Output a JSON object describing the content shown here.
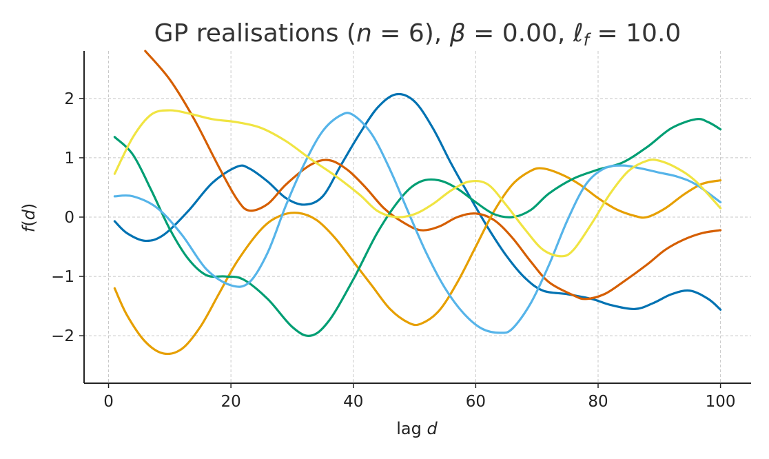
{
  "chart_data": {
    "type": "line",
    "title_parts": {
      "prefix": "GP realisations (",
      "n_sym": "n",
      "n_eq": " = 6), ",
      "beta_sym": "β",
      "beta_eq": " = 0.00, ",
      "l_sym": "ℓ",
      "l_sub": "f",
      "l_eq": " = 10.0"
    },
    "xlabel_parts": {
      "prefix": "lag ",
      "var": "d"
    },
    "ylabel_parts": {
      "func": "f",
      "open": "(",
      "var": "d",
      "close": ")"
    },
    "xlim": [
      -4,
      105
    ],
    "ylim": [
      -2.8,
      2.8
    ],
    "xticks": [
      0,
      20,
      40,
      60,
      80,
      100
    ],
    "yticks": [
      -2,
      -1,
      0,
      1,
      2
    ],
    "ytick_labels": [
      "−2",
      "−1",
      "0",
      "1",
      "2"
    ],
    "grid": true,
    "series": [
      {
        "color": "#0072B2",
        "points": [
          [
            1,
            -0.07
          ],
          [
            3,
            -0.27
          ],
          [
            6,
            -0.4
          ],
          [
            9,
            -0.3
          ],
          [
            13,
            0.1
          ],
          [
            17,
            0.58
          ],
          [
            21,
            0.85
          ],
          [
            23,
            0.82
          ],
          [
            26,
            0.6
          ],
          [
            29,
            0.32
          ],
          [
            32,
            0.21
          ],
          [
            35,
            0.35
          ],
          [
            38,
            0.88
          ],
          [
            41,
            1.4
          ],
          [
            44,
            1.85
          ],
          [
            47,
            2.07
          ],
          [
            50,
            1.95
          ],
          [
            53,
            1.5
          ],
          [
            56,
            0.9
          ],
          [
            59,
            0.35
          ],
          [
            62,
            -0.18
          ],
          [
            65,
            -0.65
          ],
          [
            68,
            -1.02
          ],
          [
            71,
            -1.24
          ],
          [
            75,
            -1.3
          ],
          [
            79,
            -1.38
          ],
          [
            82,
            -1.48
          ],
          [
            86,
            -1.55
          ],
          [
            89,
            -1.45
          ],
          [
            92,
            -1.3
          ],
          [
            95,
            -1.24
          ],
          [
            98,
            -1.38
          ],
          [
            100,
            -1.56
          ]
        ]
      },
      {
        "color": "#D55E00",
        "points": [
          [
            6,
            2.8
          ],
          [
            10,
            2.32
          ],
          [
            14,
            1.65
          ],
          [
            18,
            0.85
          ],
          [
            21,
            0.3
          ],
          [
            23,
            0.11
          ],
          [
            26,
            0.22
          ],
          [
            29,
            0.55
          ],
          [
            33,
            0.88
          ],
          [
            36,
            0.96
          ],
          [
            39,
            0.8
          ],
          [
            42,
            0.5
          ],
          [
            45,
            0.15
          ],
          [
            48,
            -0.08
          ],
          [
            51,
            -0.22
          ],
          [
            54,
            -0.16
          ],
          [
            57,
            0.0
          ],
          [
            60,
            0.06
          ],
          [
            63,
            -0.05
          ],
          [
            66,
            -0.35
          ],
          [
            69,
            -0.75
          ],
          [
            72,
            -1.1
          ],
          [
            76,
            -1.32
          ],
          [
            78,
            -1.38
          ],
          [
            81,
            -1.3
          ],
          [
            84,
            -1.1
          ],
          [
            88,
            -0.8
          ],
          [
            91,
            -0.55
          ],
          [
            94,
            -0.38
          ],
          [
            97,
            -0.27
          ],
          [
            100,
            -0.22
          ]
        ]
      },
      {
        "color": "#E69F00",
        "points": [
          [
            1,
            -1.2
          ],
          [
            3,
            -1.65
          ],
          [
            6,
            -2.1
          ],
          [
            9,
            -2.3
          ],
          [
            12,
            -2.22
          ],
          [
            15,
            -1.85
          ],
          [
            18,
            -1.3
          ],
          [
            21,
            -0.75
          ],
          [
            25,
            -0.2
          ],
          [
            28,
            0.02
          ],
          [
            31,
            0.07
          ],
          [
            34,
            -0.05
          ],
          [
            37,
            -0.35
          ],
          [
            40,
            -0.75
          ],
          [
            43,
            -1.15
          ],
          [
            46,
            -1.55
          ],
          [
            49,
            -1.78
          ],
          [
            51,
            -1.8
          ],
          [
            54,
            -1.58
          ],
          [
            57,
            -1.1
          ],
          [
            60,
            -0.5
          ],
          [
            63,
            0.1
          ],
          [
            66,
            0.55
          ],
          [
            69,
            0.78
          ],
          [
            71,
            0.82
          ],
          [
            74,
            0.72
          ],
          [
            77,
            0.55
          ],
          [
            80,
            0.32
          ],
          [
            83,
            0.13
          ],
          [
            86,
            0.02
          ],
          [
            88,
            0.0
          ],
          [
            91,
            0.15
          ],
          [
            94,
            0.38
          ],
          [
            97,
            0.56
          ],
          [
            100,
            0.62
          ]
        ]
      },
      {
        "color": "#009E73",
        "points": [
          [
            1,
            1.35
          ],
          [
            4,
            1.05
          ],
          [
            7,
            0.45
          ],
          [
            10,
            -0.2
          ],
          [
            13,
            -0.7
          ],
          [
            16,
            -0.98
          ],
          [
            19,
            -1.0
          ],
          [
            22,
            -1.05
          ],
          [
            26,
            -1.38
          ],
          [
            30,
            -1.85
          ],
          [
            33,
            -2.0
          ],
          [
            36,
            -1.75
          ],
          [
            40,
            -1.05
          ],
          [
            44,
            -0.25
          ],
          [
            48,
            0.35
          ],
          [
            51,
            0.6
          ],
          [
            54,
            0.62
          ],
          [
            57,
            0.48
          ],
          [
            60,
            0.25
          ],
          [
            63,
            0.05
          ],
          [
            66,
            0.0
          ],
          [
            69,
            0.12
          ],
          [
            72,
            0.4
          ],
          [
            76,
            0.65
          ],
          [
            80,
            0.8
          ],
          [
            84,
            0.92
          ],
          [
            88,
            1.18
          ],
          [
            92,
            1.5
          ],
          [
            96,
            1.65
          ],
          [
            98,
            1.6
          ],
          [
            100,
            1.48
          ]
        ]
      },
      {
        "color": "#56B4E9",
        "points": [
          [
            1,
            0.35
          ],
          [
            4,
            0.35
          ],
          [
            8,
            0.15
          ],
          [
            12,
            -0.3
          ],
          [
            16,
            -0.88
          ],
          [
            20,
            -1.15
          ],
          [
            23,
            -1.1
          ],
          [
            26,
            -0.6
          ],
          [
            29,
            0.2
          ],
          [
            32,
            0.9
          ],
          [
            35,
            1.45
          ],
          [
            38,
            1.72
          ],
          [
            40,
            1.72
          ],
          [
            43,
            1.4
          ],
          [
            46,
            0.8
          ],
          [
            49,
            0.08
          ],
          [
            52,
            -0.62
          ],
          [
            55,
            -1.2
          ],
          [
            58,
            -1.62
          ],
          [
            61,
            -1.88
          ],
          [
            64,
            -1.95
          ],
          [
            66,
            -1.88
          ],
          [
            69,
            -1.45
          ],
          [
            72,
            -0.8
          ],
          [
            75,
            -0.05
          ],
          [
            78,
            0.55
          ],
          [
            81,
            0.82
          ],
          [
            84,
            0.87
          ],
          [
            87,
            0.82
          ],
          [
            90,
            0.75
          ],
          [
            93,
            0.68
          ],
          [
            96,
            0.55
          ],
          [
            100,
            0.25
          ]
        ]
      },
      {
        "color": "#F0E442",
        "points": [
          [
            1,
            0.73
          ],
          [
            4,
            1.35
          ],
          [
            7,
            1.73
          ],
          [
            10,
            1.8
          ],
          [
            13,
            1.75
          ],
          [
            17,
            1.65
          ],
          [
            21,
            1.6
          ],
          [
            25,
            1.5
          ],
          [
            29,
            1.28
          ],
          [
            33,
            0.98
          ],
          [
            37,
            0.7
          ],
          [
            41,
            0.38
          ],
          [
            44,
            0.1
          ],
          [
            47,
            0.0
          ],
          [
            50,
            0.05
          ],
          [
            53,
            0.22
          ],
          [
            56,
            0.45
          ],
          [
            59,
            0.6
          ],
          [
            62,
            0.55
          ],
          [
            65,
            0.2
          ],
          [
            68,
            -0.2
          ],
          [
            71,
            -0.55
          ],
          [
            74,
            -0.66
          ],
          [
            76,
            -0.55
          ],
          [
            79,
            -0.1
          ],
          [
            82,
            0.4
          ],
          [
            85,
            0.78
          ],
          [
            88,
            0.95
          ],
          [
            90,
            0.95
          ],
          [
            93,
            0.82
          ],
          [
            96,
            0.6
          ],
          [
            100,
            0.15
          ]
        ]
      }
    ]
  }
}
